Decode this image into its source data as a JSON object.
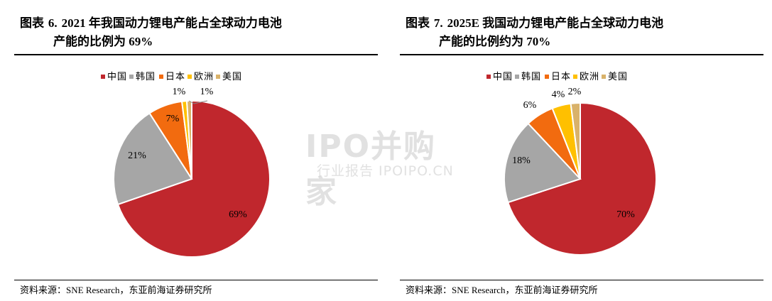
{
  "watermark": {
    "main": "IPO并购家",
    "sub": "行业报告 IPOIPO.CN"
  },
  "panels": [
    {
      "title_prefix": "图表",
      "title_num": "6.",
      "title_line1": "2021 年我国动力锂电产能占全球动力电池",
      "title_line2": "产能的比例为 69%",
      "source_prefix": "资料来源：",
      "source_en": "SNE Research",
      "source_suffix": "，东亚前海证券研究所"
    },
    {
      "title_prefix": "图表",
      "title_num": "7.",
      "title_line1": "2025E 我国动力锂电产能占全球动力电池",
      "title_line2": "产能的比例约为 70%",
      "source_prefix": "资料来源：",
      "source_en": "SNE Research",
      "source_suffix": "，东亚前海证券研究所"
    }
  ],
  "chart_data": [
    {
      "type": "pie",
      "title": "2021 年我国动力锂电产能占全球动力电池产能的比例为 69%",
      "legend_position": "top",
      "categories": [
        "中国",
        "韩国",
        "日本",
        "欧洲",
        "美国"
      ],
      "values": [
        69,
        21,
        7,
        1,
        1
      ],
      "labels": [
        "69%",
        "21%",
        "7%",
        "1%",
        "1%"
      ],
      "colors": [
        "#C0272D",
        "#A6A6A6",
        "#F26B0F",
        "#FFC000",
        "#D9B26A"
      ]
    },
    {
      "type": "pie",
      "title": "2025E 我国动力锂电产能占全球动力电池产能的比例约为 70%",
      "legend_position": "top",
      "categories": [
        "中国",
        "韩国",
        "日本",
        "欧洲",
        "美国"
      ],
      "values": [
        70,
        18,
        6,
        4,
        2
      ],
      "labels": [
        "70%",
        "18%",
        "6%",
        "4%",
        "2%"
      ],
      "colors": [
        "#C0272D",
        "#A6A6A6",
        "#F26B0F",
        "#FFC000",
        "#D9B26A"
      ]
    }
  ]
}
